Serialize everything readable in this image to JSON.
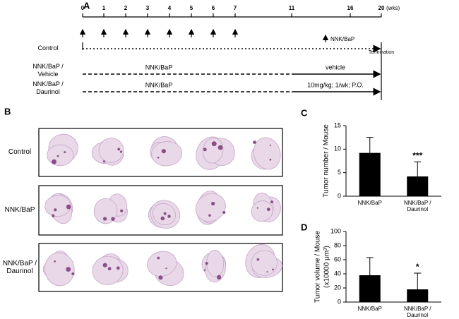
{
  "figure": {
    "panel_labels": [
      "A",
      "B",
      "C",
      "D"
    ],
    "timeline": {
      "weeks": [
        "0",
        "1",
        "2",
        "3",
        "4",
        "5",
        "6",
        "7",
        "11",
        "16",
        "20"
      ],
      "unit": "(wks)",
      "legend_arrow": "NNK/BaP",
      "end_label": "Termination",
      "groups": [
        {
          "label": "Control"
        },
        {
          "label": "NNK/BaP / Vehicle",
          "phase1": "NNK/BaP",
          "phase2": "vehicle"
        },
        {
          "label": "NNK/BaP / Daurinol",
          "phase1": "NNK/BaP",
          "phase2": "10mg/kg; 1/wk; P.O."
        }
      ]
    },
    "histology": {
      "rows": [
        "Control",
        "NNK/BaP",
        "NNK/BaP / Daurinol"
      ]
    }
  },
  "chart_data": [
    {
      "type": "bar",
      "y_label": "Tumor number / Mouse",
      "categories": [
        "NNK/BaP",
        "NNK/BaP / Daurinol"
      ],
      "values": [
        9.2,
        4.2
      ],
      "errors": [
        3.3,
        3.1
      ],
      "annotations": [
        null,
        "***"
      ],
      "color": "#000000",
      "ylim": [
        0,
        15
      ],
      "yticks": [
        0,
        5,
        10,
        15
      ]
    },
    {
      "type": "bar",
      "y_label": "Tumor volume / Mouse",
      "y_label_unit": "(x10000 μm³)",
      "categories": [
        "NNK/BaP",
        "NNK/BaP / Daurinol"
      ],
      "values": [
        38,
        18
      ],
      "errors": [
        25,
        23
      ],
      "annotations": [
        null,
        "*"
      ],
      "color": "#000000",
      "ylim": [
        0,
        100
      ],
      "yticks": [
        0,
        20,
        40,
        60,
        80,
        100
      ]
    }
  ]
}
